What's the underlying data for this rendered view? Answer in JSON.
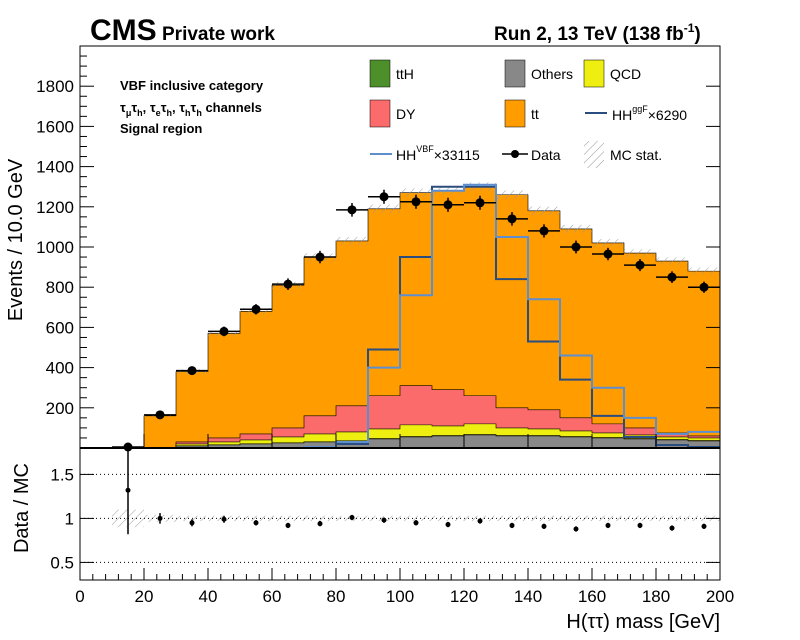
{
  "header": {
    "experiment": "CMS",
    "label": "Private work",
    "run_info": "Run 2, 13 TeV (138 fb",
    "run_sup": "-1",
    "run_close": ")"
  },
  "category": {
    "line1": "VBF inclusive category",
    "line3": "Signal region"
  },
  "colors": {
    "ttH": "#4d8f2a",
    "Others": "#888888",
    "QCD": "#eeee11",
    "DY": "#fb6b6b",
    "tt": "#ff9c00",
    "HHggF": "#2a4d7f",
    "HHVBF": "#5d8fd0",
    "data": "#000000"
  },
  "legend": {
    "ttH": "ttH",
    "Others": "Others",
    "QCD": "QCD",
    "DY": "DY",
    "tt": "tt",
    "hh_ggf_base": "HH",
    "hh_ggf_sup": "ggF",
    "hh_ggf_scale": "×6290",
    "hh_vbf_base": "HH",
    "hh_vbf_sup": "VBF",
    "hh_vbf_scale": "×33115",
    "data": "Data",
    "mc_stat": "MC stat."
  },
  "chart_data": {
    "type": "bar",
    "subtype": "stacked histogram with ratio panel",
    "bin_edges": [
      10,
      20,
      30,
      40,
      50,
      60,
      70,
      80,
      90,
      100,
      110,
      120,
      130,
      140,
      150,
      160,
      170,
      180,
      190,
      200
    ],
    "xlim": [
      0,
      200
    ],
    "xlabel": "H(ττ) mass [GeV]",
    "ylabel": "Events / 10.0 GeV",
    "ylim": [
      0,
      2000
    ],
    "yticks": [
      200,
      400,
      600,
      800,
      1000,
      1200,
      1400,
      1600,
      1800
    ],
    "xticks": [
      0,
      20,
      40,
      60,
      80,
      100,
      120,
      140,
      160,
      180,
      200
    ],
    "stack_order": [
      "Others",
      "ttH",
      "QCD",
      "DY",
      "tt"
    ],
    "stack_cumulative": {
      "Others": [
        0,
        0,
        10,
        15,
        20,
        25,
        30,
        35,
        45,
        55,
        60,
        65,
        60,
        60,
        55,
        50,
        45,
        40,
        35
      ],
      "ttH": [
        0,
        0,
        11,
        16,
        21,
        26,
        31,
        36,
        47,
        57,
        62,
        67,
        62,
        62,
        57,
        52,
        47,
        42,
        37
      ],
      "QCD": [
        0,
        0,
        20,
        30,
        40,
        55,
        70,
        80,
        95,
        115,
        110,
        120,
        100,
        95,
        85,
        75,
        65,
        55,
        50
      ],
      "DY": [
        0,
        0,
        30,
        50,
        70,
        100,
        160,
        210,
        260,
        310,
        290,
        260,
        200,
        190,
        150,
        120,
        100,
        75,
        60
      ],
      "tt": [
        5,
        160,
        380,
        570,
        680,
        810,
        950,
        1030,
        1190,
        1270,
        1280,
        1300,
        1260,
        1180,
        1090,
        1020,
        970,
        930,
        880
      ]
    },
    "series": [
      {
        "name": "HHggF×6290",
        "values": [
          0,
          0,
          0,
          0,
          0,
          0,
          5,
          20,
          490,
          950,
          1300,
          1300,
          840,
          530,
          340,
          160,
          55,
          15,
          5
        ]
      },
      {
        "name": "HHVBF×33115",
        "values": [
          0,
          0,
          0,
          0,
          0,
          0,
          5,
          30,
          400,
          760,
          1280,
          1310,
          1050,
          740,
          460,
          300,
          150,
          70,
          80
        ]
      }
    ],
    "data_points": {
      "x": [
        15,
        25,
        35,
        45,
        55,
        65,
        75,
        85,
        95,
        105,
        115,
        125,
        135,
        145,
        155,
        165,
        175,
        185,
        195
      ],
      "y": [
        5,
        165,
        385,
        580,
        690,
        815,
        950,
        1185,
        1250,
        1225,
        1210,
        1220,
        1140,
        1080,
        1000,
        965,
        910,
        850,
        800
      ],
      "yerr": [
        3,
        14,
        20,
        24,
        26,
        29,
        31,
        34,
        35,
        35,
        35,
        35,
        34,
        33,
        32,
        31,
        30,
        29,
        28
      ]
    },
    "ratio": {
      "ylabel": "Data / MC",
      "ylim": [
        0.3,
        1.8
      ],
      "yticks": [
        0.5,
        1,
        1.5
      ],
      "x": [
        15,
        25,
        35,
        45,
        55,
        65,
        75,
        85,
        95,
        105,
        115,
        125,
        135,
        145,
        155,
        165,
        175,
        185,
        195
      ],
      "values": [
        1.32,
        1.0,
        0.95,
        0.99,
        0.95,
        0.92,
        0.94,
        1.01,
        0.98,
        0.95,
        0.93,
        0.97,
        0.92,
        0.91,
        0.88,
        0.92,
        0.92,
        0.89,
        0.91
      ],
      "err": [
        0.5,
        0.06,
        0.04,
        0.04,
        0.03,
        0.03,
        0.03,
        0.03,
        0.03,
        0.03,
        0.03,
        0.03,
        0.03,
        0.03,
        0.03,
        0.03,
        0.03,
        0.03,
        0.03
      ],
      "mc_stat_band": [
        0.1,
        0.04,
        0.03,
        0.03,
        0.03,
        0.03,
        0.03,
        0.03,
        0.03,
        0.03,
        0.03,
        0.03,
        0.03,
        0.03,
        0.03,
        0.03,
        0.03,
        0.03,
        0.03
      ],
      "gridlines": [
        0.5,
        1,
        1.5
      ]
    }
  }
}
